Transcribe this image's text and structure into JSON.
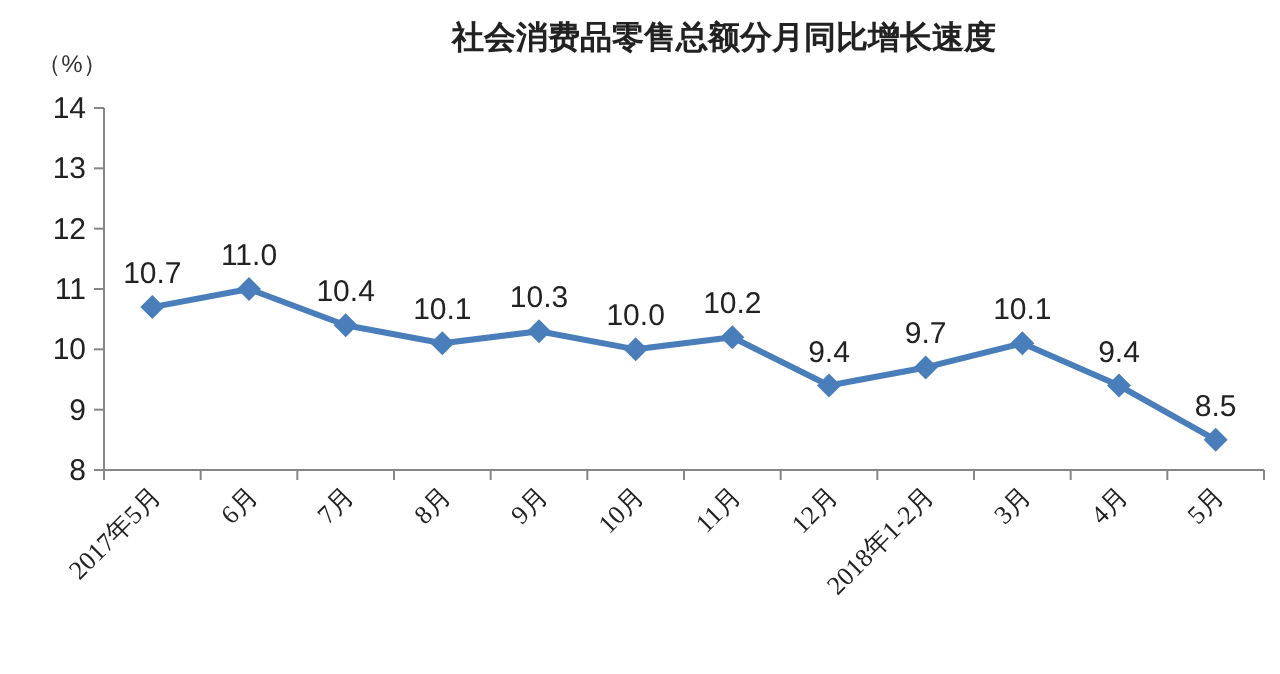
{
  "chart_data": {
    "type": "line",
    "title": "社会消费品零售总额分月同比增长速度",
    "ylabel": "（%）",
    "categories": [
      "2017年5月",
      "6月",
      "7月",
      "8月",
      "9月",
      "10月",
      "11月",
      "12月",
      "2018年1-2月",
      "3月",
      "4月",
      "5月"
    ],
    "values": [
      10.7,
      11.0,
      10.4,
      10.1,
      10.3,
      10.0,
      10.2,
      9.4,
      9.7,
      10.1,
      9.4,
      8.5
    ],
    "color": "#4a7ebb",
    "ylim": [
      8,
      14
    ],
    "yticks": [
      8,
      9,
      10,
      11,
      12,
      13,
      14
    ],
    "marker": "diamond",
    "line_style": "solid",
    "value_labels": [
      "10.7",
      "11.0",
      "10.4",
      "10.1",
      "10.3",
      "10.0",
      "10.2",
      "9.4",
      "9.7",
      "10.1",
      "9.4",
      "8.5"
    ]
  }
}
